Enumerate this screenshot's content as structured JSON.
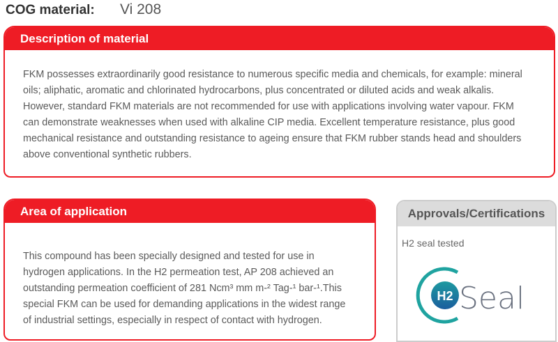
{
  "cog": {
    "label": "COG material:",
    "value": "Vi 208"
  },
  "description": {
    "title": "Description of material",
    "lines": [
      "FKM possesses extraordinarily good resistance to numerous specific media and chemicals, for example: mineral",
      "oils; aliphatic, aromatic and chlorinated hydrocarbons, plus concentrated or diluted acids and weak alkalis.",
      "However, standard FKM materials are not recommended for use with applications involving water vapour. FKM",
      "can demonstrate weaknesses when used with alkaline CIP media. Excellent temperature resistance, plus good",
      "mechanical resistance and outstanding resistance to ageing ensure that FKM rubber stands head and shoulders",
      "above conventional synthetic rubbers."
    ]
  },
  "application": {
    "title": "Area of application",
    "lines": [
      "This compound has been specially designed and tested for use in",
      "hydrogen applications. In the H2 permeation test, AP 208 achieved an",
      "outstanding permeation coefficient of 281 Ncm³ mm m-² Tag-¹ bar-¹.This",
      "special FKM can be used for demanding applications in the widest range",
      "of industrial settings, especially in respect of contact with hydrogen."
    ]
  },
  "approvals": {
    "title": "Approvals/Certifications",
    "item": "H2 seal tested",
    "logo": {
      "badge": "H2",
      "word": "Seal",
      "colors": {
        "ring": "#1fa3a0",
        "badge_top": "#1e9aa0",
        "badge_bottom": "#1a5e9e",
        "word": "#6b7280"
      }
    }
  },
  "colors": {
    "accent": "#ee1c25",
    "panel_header": "#dcdcdc"
  }
}
